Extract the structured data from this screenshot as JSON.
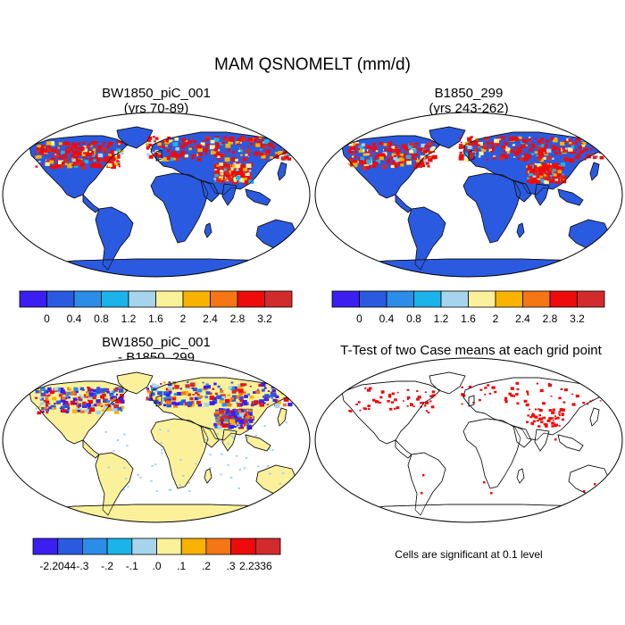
{
  "figure": {
    "title": "MAM QSNOMELT (mm/d)",
    "note": "Cells are significant at 0.1 level"
  },
  "panels": [
    {
      "id": "case1",
      "title_line1": "BW1850_piC_001",
      "title_line2": "(yrs 70-89)"
    },
    {
      "id": "case2",
      "title_line1": "B1850_299",
      "title_line2": "(yrs 243-262)"
    },
    {
      "id": "diff",
      "title_line1": "BW1850_piC_001",
      "title_line2": "- B1850_299"
    },
    {
      "id": "ttest",
      "title_line1": "T-Test of two Case means at each grid point",
      "title_line2": ""
    }
  ],
  "colorbars": {
    "absolute": {
      "colors": [
        "#3b1ef0",
        "#2a5ae0",
        "#2c8de8",
        "#1ab4ea",
        "#a6d4ec",
        "#fbf19a",
        "#f7b300",
        "#f47614",
        "#ee0b0b",
        "#d22b2b"
      ],
      "labels": [
        "0",
        "0.4",
        "0.8",
        "1.2",
        "1.6",
        "2",
        "2.4",
        "2.8",
        "3.2"
      ]
    },
    "difference": {
      "colors": [
        "#3b1ef0",
        "#2a5ae0",
        "#2c8de8",
        "#1ab4ea",
        "#a6d4ec",
        "#fbf19a",
        "#f7b300",
        "#f47614",
        "#ee0b0b",
        "#d22b2b"
      ],
      "labels": [
        "-2.2044",
        "-.3",
        "-.2",
        "-.1",
        ".0",
        ".1",
        ".2",
        ".3",
        "2.2336"
      ]
    }
  },
  "map_colors": {
    "ocean": "#ffffff",
    "base_absolute": "#2a5ae0",
    "base_difference": "#fbf19a",
    "significant": "#ee0b0b"
  }
}
